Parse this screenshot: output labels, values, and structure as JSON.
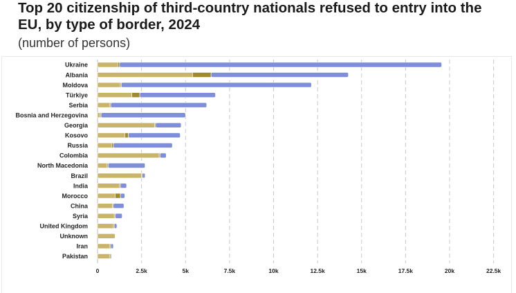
{
  "title": "Top 20 citizenship of third-country nationals refused to entry into the EU, by type of border, 2024",
  "subtitle": "(number of persons)",
  "chart_data": {
    "type": "bar",
    "orientation": "horizontal",
    "stacked": true,
    "title": "Top 20 citizenship of third-country nationals refused to entry into the EU, by type of border, 2024",
    "subtitle": "(number of persons)",
    "xlim": [
      0,
      22500
    ],
    "xticks": [
      0,
      2500,
      5000,
      7500,
      10000,
      12500,
      15000,
      17500,
      20000,
      22500
    ],
    "xtick_labels": [
      "0",
      "2.5k",
      "5k",
      "7.5k",
      "10k",
      "12.5k",
      "15k",
      "17.5k",
      "20k",
      "22.5k"
    ],
    "grid": "vertical dashed",
    "categories": [
      "Ukraine",
      "Albania",
      "Moldova",
      "Türkiye",
      "Serbia",
      "Bosnia and Herzegovina",
      "Georgia",
      "Kosovo",
      "Russia",
      "Colombia",
      "North Macedonia",
      "Brazil",
      "India",
      "Morocco",
      "China",
      "Syria",
      "United Kingdom",
      "Unknown",
      "Iran",
      "Pakistan"
    ],
    "series": [
      {
        "color": "#c8b46a",
        "values": [
          1150,
          5400,
          1300,
          1950,
          700,
          150,
          3250,
          1550,
          800,
          3500,
          550,
          2500,
          1250,
          1000,
          850,
          950,
          900,
          1000,
          700,
          700
        ]
      },
      {
        "color": "#a08a2e",
        "values": [
          100,
          1050,
          50,
          450,
          50,
          50,
          50,
          200,
          100,
          50,
          50,
          50,
          50,
          300,
          50,
          50,
          50,
          0,
          50,
          50
        ]
      },
      {
        "color": "#7e8ed8",
        "values": [
          18300,
          7800,
          10800,
          4300,
          5450,
          4800,
          1450,
          2950,
          3350,
          350,
          2100,
          150,
          350,
          250,
          600,
          400,
          150,
          0,
          150,
          50
        ]
      }
    ]
  }
}
